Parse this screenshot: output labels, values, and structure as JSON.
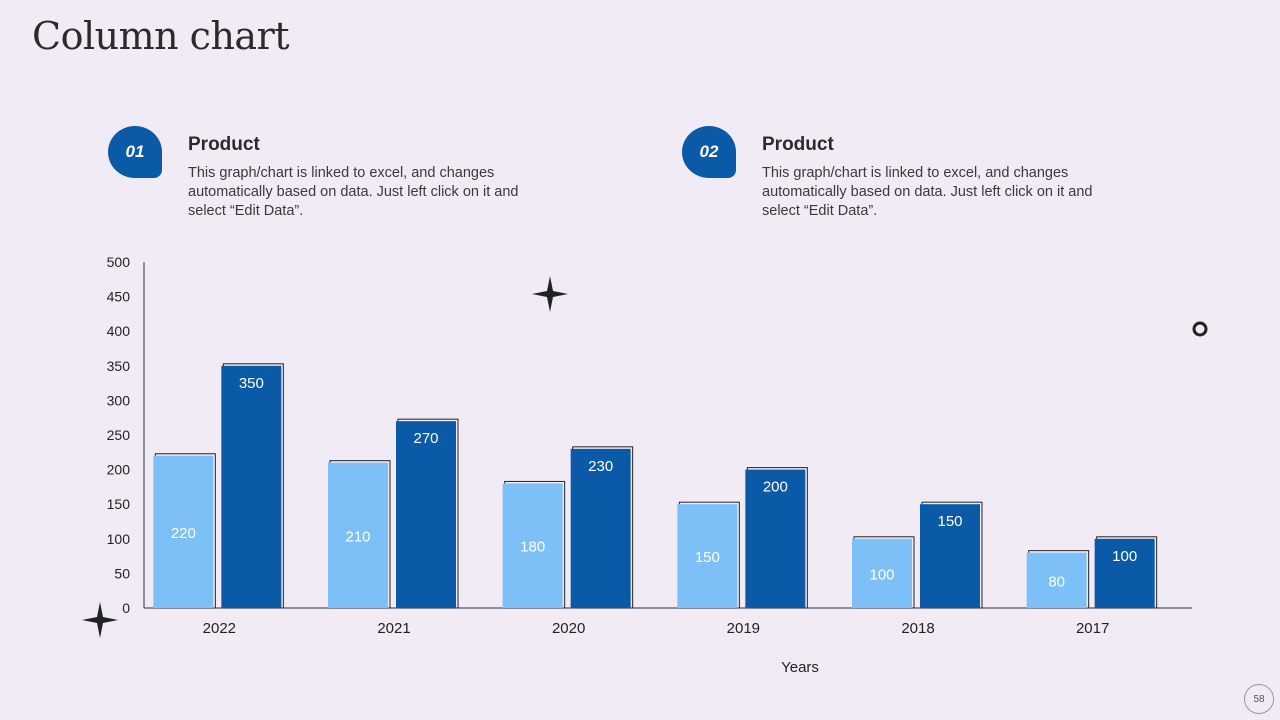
{
  "slide": {
    "title": "Column chart",
    "page_number": "58"
  },
  "cards": [
    {
      "badge": "01",
      "heading": "Product",
      "text": "This graph/chart is linked to excel, and changes automatically based on data. Just left click on it and select “Edit Data”."
    },
    {
      "badge": "02",
      "heading": "Product",
      "text": "This graph/chart is linked to excel, and changes automatically based on data. Just left click on it and select “Edit Data”."
    }
  ],
  "colors": {
    "series1": "#7dbff7",
    "series2": "#0a5aa8",
    "background": "#f1ebf6"
  },
  "chart_data": {
    "type": "bar",
    "title": "",
    "xlabel": "Years",
    "ylabel": "",
    "ylim": [
      0,
      500
    ],
    "yticks": [
      0,
      50,
      100,
      150,
      200,
      250,
      300,
      350,
      400,
      450,
      500
    ],
    "categories": [
      "2022",
      "2021",
      "2020",
      "2019",
      "2018",
      "2017"
    ],
    "series": [
      {
        "name": "Product 01",
        "values": [
          220,
          210,
          180,
          150,
          100,
          80
        ]
      },
      {
        "name": "Product 02",
        "values": [
          350,
          270,
          230,
          200,
          150,
          100
        ]
      }
    ]
  }
}
